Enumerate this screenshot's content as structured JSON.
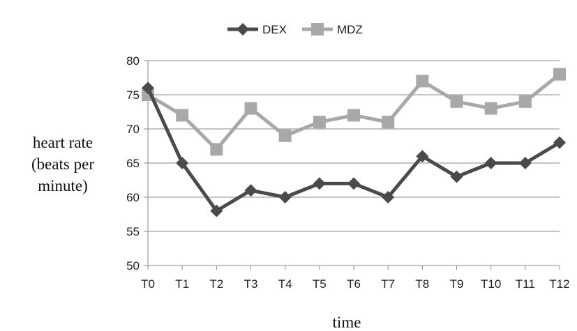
{
  "chart_data": {
    "type": "line",
    "title": "",
    "xlabel": "time",
    "ylabel_lines": [
      "heart rate",
      "(beats per",
      "minute)"
    ],
    "categories": [
      "T0",
      "T1",
      "T2",
      "T3",
      "T4",
      "T5",
      "T6",
      "T7",
      "T8",
      "T9",
      "T10",
      "T11",
      "T12"
    ],
    "yticks": [
      "50",
      "55",
      "60",
      "65",
      "70",
      "75",
      "80"
    ],
    "ylim": [
      50,
      80
    ],
    "grid": true,
    "legend_position": "top",
    "series": [
      {
        "name": "DEX",
        "marker": "diamond",
        "color": "#4a4a4a",
        "values": [
          76,
          65,
          58,
          61,
          60,
          62,
          62,
          60,
          66,
          63,
          65,
          65,
          68
        ]
      },
      {
        "name": "MDZ",
        "marker": "square",
        "color": "#a8a8a8",
        "values": [
          75,
          72,
          67,
          73,
          69,
          71,
          72,
          71,
          77,
          74,
          73,
          74,
          78
        ]
      }
    ]
  }
}
